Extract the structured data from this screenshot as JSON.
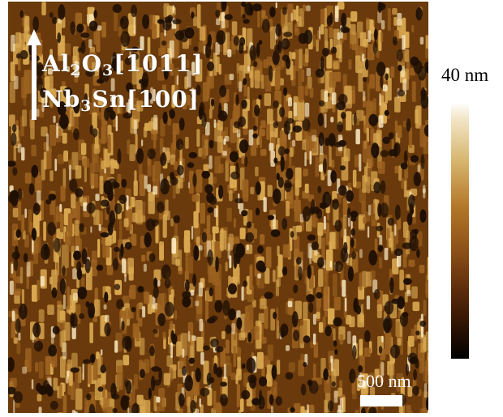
{
  "image": {
    "description_name": "afm-topography-map",
    "palette": {
      "dark": "#1e0f04",
      "mid_dark": "#6a3a0c",
      "mid": "#9c6220",
      "light": "#d9a850",
      "highlight": "#fff0c8"
    }
  },
  "orientation": {
    "line1": {
      "base": "Al",
      "sub1": "2",
      "base2": "O",
      "sub2": "3",
      "bracket_open": "[",
      "bar_digit": "1",
      "rest": "011",
      "bracket_close": "]"
    },
    "line2": {
      "base": "Nb",
      "sub1": "3",
      "base2": "Sn",
      "bracket": "[100]"
    }
  },
  "scalebar": {
    "label": "500 nm"
  },
  "colorbar": {
    "max_label": "40 nm"
  }
}
